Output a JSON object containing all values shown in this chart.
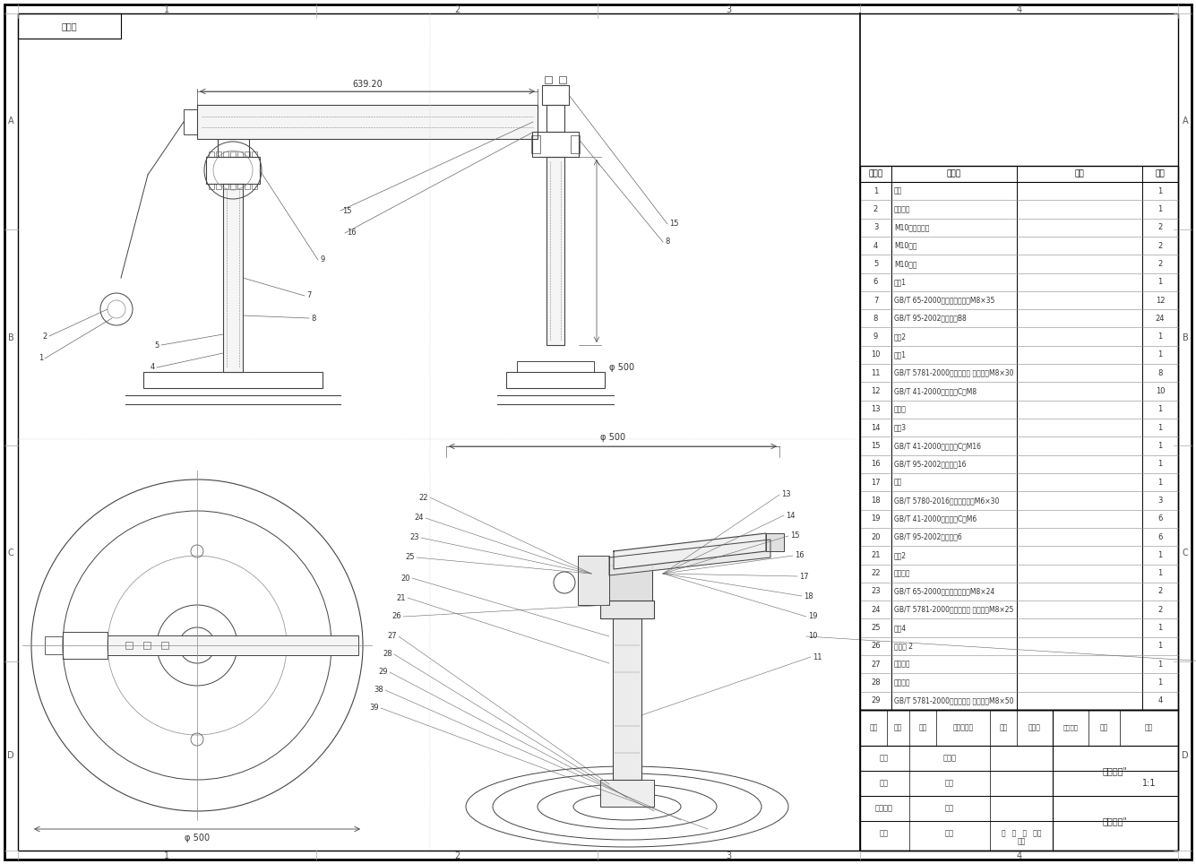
{
  "bg_color": "#ffffff",
  "lc": "#000000",
  "dlc": "#444444",
  "glc": "#888888",
  "parts_header": [
    "项目号",
    "零件号",
    "说明",
    "数量"
  ],
  "parts_rows": [
    [
      "1",
      "底座",
      "",
      "1"
    ],
    [
      "2",
      "回转气缸",
      "",
      "1"
    ],
    [
      "3",
      "M10内六角螺栓",
      "",
      "2"
    ],
    [
      "4",
      "M10帢片",
      "",
      "2"
    ],
    [
      "5",
      "M10螺母",
      "",
      "2"
    ],
    [
      "6",
      "法具1",
      "",
      "1"
    ],
    [
      "7",
      "GB/T 65-2000开槽圆柱头螺钉M8×35",
      "",
      "12"
    ],
    [
      "8",
      "GB/T 95-2002平垫圈级B8",
      "",
      "24"
    ],
    [
      "9",
      "法具2",
      "",
      "1"
    ],
    [
      "10",
      "气缸1",
      "",
      "1"
    ],
    [
      "11",
      "GB/T 5781-2000六角头螺栓 全螺纹级M8×30",
      "",
      "8"
    ],
    [
      "12",
      "GB/T 41-2000六角螺母C级M8",
      "",
      "10"
    ],
    [
      "13",
      "活塞杆",
      "",
      "1"
    ],
    [
      "14",
      "法具3",
      "",
      "1"
    ],
    [
      "15",
      "GB/T 41-2000六角螺母C级M16",
      "",
      "1"
    ],
    [
      "16",
      "GB/T 95-2002平垫圈级16",
      "",
      "1"
    ],
    [
      "17",
      "托板",
      "",
      "1"
    ],
    [
      "18",
      "GB/T 5780-2016六角头螺栓级M6×30",
      "",
      "3"
    ],
    [
      "19",
      "GB/T 41-2000六角螺母C级M6",
      "",
      "6"
    ],
    [
      "20",
      "GB/T 95-2002平垫圈级6",
      "",
      "6"
    ],
    [
      "21",
      "气缸2",
      "",
      "1"
    ],
    [
      "22",
      "固定角铁",
      "",
      "1"
    ],
    [
      "23",
      "GB/T 65-2000开槽圆柱头螺钉M8×24",
      "",
      "2"
    ],
    [
      "24",
      "GB/T 5781-2000六角头螺栓 全螺纹级M8×25",
      "",
      "2"
    ],
    [
      "25",
      "法具4",
      "",
      "1"
    ],
    [
      "26",
      "活塞杆 2",
      "",
      "1"
    ],
    [
      "27",
      "吸盘支架",
      "",
      "1"
    ],
    [
      "28",
      "真空吸盘",
      "",
      "1"
    ],
    [
      "29",
      "GB/T 5781-2000六角头螺栓 全螺纹级M8×50",
      "",
      "4"
    ]
  ],
  "corner_label": "合并图",
  "dim_630": "639.20",
  "dim_500_circle": "φ 500",
  "dim_500_side": "φ 500"
}
